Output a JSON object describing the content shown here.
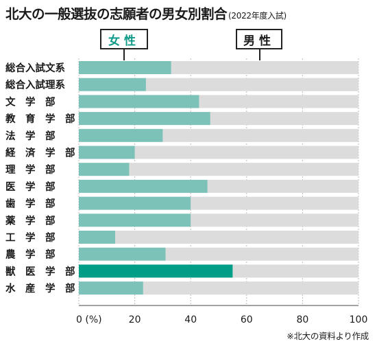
{
  "header": {
    "title": "北大の一般選抜の志願者の男女別割合",
    "subtitle": "(2022年度入試)"
  },
  "legend": {
    "female_label": "女性",
    "male_label": "男性"
  },
  "source": "※北大の資料より作成",
  "colors": {
    "female": "#7dc2b8",
    "female_highlight": "#009e87",
    "male": "#dcdcdc",
    "female_text": "#0d9a88"
  },
  "chart_data": {
    "type": "bar",
    "orientation": "horizontal",
    "stacked": true,
    "categories": [
      "総合入試文系",
      "総合入試理系",
      "文　学　部",
      "教　育　学　部",
      "法　学　部",
      "経　済　学　部",
      "理　学　部",
      "医　学　部",
      "歯　学　部",
      "薬　学　部",
      "工　学　部",
      "農　学　部",
      "獣　医　学　部",
      "水　産　学　部"
    ],
    "series": [
      {
        "name": "女性",
        "values": [
          33,
          24,
          43,
          47,
          30,
          20,
          18,
          46,
          40,
          40,
          13,
          31,
          55,
          23
        ]
      },
      {
        "name": "男性",
        "values": [
          67,
          76,
          57,
          53,
          70,
          80,
          82,
          54,
          60,
          60,
          87,
          69,
          45,
          77
        ]
      }
    ],
    "highlight_category": "獣　医　学　部",
    "xlim": [
      0,
      100
    ],
    "xticks": [
      0,
      20,
      40,
      60,
      80,
      100
    ],
    "xtick_labels": [
      "0 (%)",
      "20",
      "40",
      "60",
      "80",
      "100"
    ],
    "grid": true
  }
}
